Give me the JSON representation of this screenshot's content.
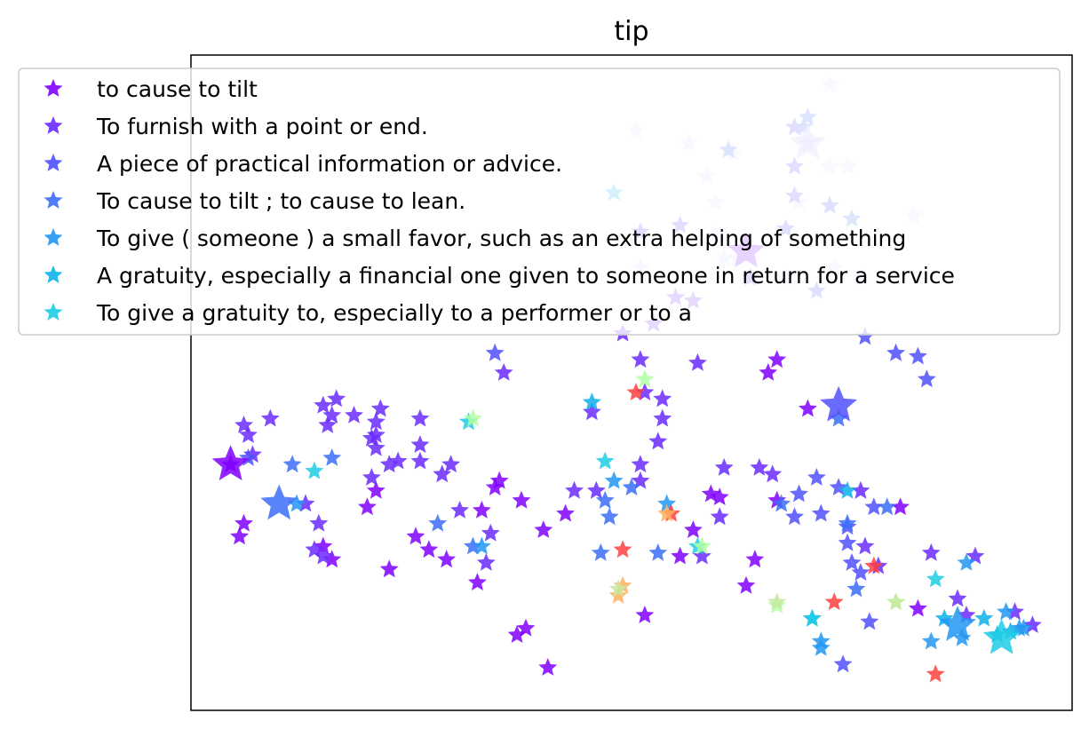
{
  "chart_data": {
    "type": "scatter",
    "title": "tip",
    "xlabel": "",
    "ylabel": "",
    "xlim": [
      0,
      100
    ],
    "ylim": [
      0,
      100
    ],
    "grid": false,
    "ticks": false,
    "legend": {
      "placement": "top-left",
      "entries": [
        {
          "label": "to cause to tilt",
          "color": "#8000ff"
        },
        {
          "label": "To furnish with a point or end.",
          "color": "#6a2afe"
        },
        {
          "label": "A piece of practical information or advice.",
          "color": "#5050fc"
        },
        {
          "label": "To cause to tilt ; to cause to lean.",
          "color": "#3c6ef8"
        },
        {
          "label": "To give ( someone ) a small favor, such as an extra helping of something",
          "color": "#2196f3"
        },
        {
          "label": "A gratuity, especially a financial one given to someone in return for a service",
          "color": "#0cb2eb"
        },
        {
          "label": "To give a gratuity to, especially to a performer or to a",
          "color": "#1ecde4"
        }
      ]
    },
    "series": [
      {
        "name": "to cause to tilt",
        "color": "#8000ff",
        "points": [
          [
            4.5,
            37.5
          ],
          [
            5.5,
            26.5
          ],
          [
            6.0,
            28.5
          ],
          [
            15.0,
            25.0
          ],
          [
            16.0,
            23.0
          ],
          [
            20.0,
            31.0
          ],
          [
            21.0,
            33.5
          ],
          [
            22.5,
            21.5
          ],
          [
            25.5,
            26.5
          ],
          [
            27.0,
            24.5
          ],
          [
            29.0,
            23.0
          ],
          [
            33.0,
            30.5
          ],
          [
            35.0,
            35.0
          ],
          [
            34.5,
            34.0
          ],
          [
            37.5,
            32.0
          ],
          [
            40.0,
            27.5
          ],
          [
            38.0,
            12.5
          ],
          [
            40.5,
            6.5
          ],
          [
            51.5,
            14.5
          ],
          [
            55.5,
            23.5
          ],
          [
            60.0,
            32.5
          ],
          [
            63.0,
            19.0
          ],
          [
            64.0,
            23.0
          ],
          [
            57.0,
            27.5
          ],
          [
            59.0,
            33.0
          ],
          [
            66.5,
            32.0
          ],
          [
            65.5,
            51.5
          ],
          [
            66.5,
            53.5
          ],
          [
            80.5,
            31.0
          ],
          [
            82.5,
            15.5
          ],
          [
            70.0,
            46.0
          ],
          [
            37.0,
            11.5
          ],
          [
            32.5,
            19.5
          ],
          [
            42.5,
            30.0
          ]
        ]
      },
      {
        "name": "To furnish with a point or end.",
        "color": "#6a2afe",
        "points": [
          [
            6.0,
            43.5
          ],
          [
            6.5,
            42.0
          ],
          [
            7.0,
            39.0
          ],
          [
            9.0,
            44.5
          ],
          [
            13.0,
            31.5
          ],
          [
            14.5,
            28.5
          ],
          [
            14.0,
            24.5
          ],
          [
            15.0,
            23.5
          ],
          [
            15.0,
            46.5
          ],
          [
            15.5,
            43.5
          ],
          [
            16.5,
            47.5
          ],
          [
            16.0,
            45.0
          ],
          [
            18.5,
            45.0
          ],
          [
            20.5,
            41.5
          ],
          [
            21.5,
            46.0
          ],
          [
            21.0,
            44.0
          ],
          [
            21.0,
            40.0
          ],
          [
            22.5,
            37.5
          ],
          [
            20.5,
            35.5
          ],
          [
            21.0,
            42.0
          ],
          [
            23.5,
            38.0
          ],
          [
            26.0,
            44.5
          ],
          [
            26.0,
            40.5
          ],
          [
            26.0,
            38.0
          ],
          [
            28.5,
            36.0
          ],
          [
            29.5,
            37.5
          ],
          [
            30.5,
            30.5
          ],
          [
            33.5,
            22.5
          ],
          [
            35.5,
            51.5
          ],
          [
            34.0,
            27.0
          ],
          [
            43.5,
            33.5
          ],
          [
            46.0,
            33.5
          ],
          [
            45.5,
            45.5
          ],
          [
            51.0,
            35.0
          ],
          [
            51.0,
            37.5
          ],
          [
            51.5,
            48.5
          ],
          [
            51.0,
            53.5
          ],
          [
            53.5,
            44.5
          ],
          [
            53.5,
            47.5
          ],
          [
            53.0,
            41.0
          ],
          [
            57.5,
            53.0
          ],
          [
            57.0,
            62.5
          ],
          [
            60.5,
            37.0
          ],
          [
            60.0,
            29.5
          ],
          [
            58.0,
            23.5
          ],
          [
            49.0,
            57.5
          ],
          [
            52.5,
            59.0
          ],
          [
            64.5,
            37.0
          ],
          [
            66.0,
            36.0
          ],
          [
            84.0,
            24.0
          ],
          [
            89.0,
            23.5
          ],
          [
            87.0,
            17.0
          ],
          [
            88.0,
            14.5
          ],
          [
            93.5,
            15.0
          ],
          [
            95.5,
            13.0
          ],
          [
            76.0,
            33.5
          ],
          [
            76.5,
            25.0
          ],
          [
            78.0,
            22.0
          ],
          [
            55.0,
            63.0
          ]
        ]
      },
      {
        "name": "A piece of practical information or advice.",
        "color": "#5050fc",
        "points": [
          [
            6.5,
            38.5
          ],
          [
            34.5,
            54.5
          ],
          [
            68.5,
            29.5
          ],
          [
            69.0,
            33.0
          ],
          [
            71.0,
            35.5
          ],
          [
            73.5,
            34.0
          ],
          [
            74.5,
            28.0
          ],
          [
            75.0,
            22.5
          ],
          [
            76.0,
            21.0
          ],
          [
            77.5,
            31.0
          ],
          [
            77.0,
            13.5
          ],
          [
            74.0,
            7.0
          ],
          [
            74.5,
            25.5
          ],
          [
            71.5,
            30.0
          ],
          [
            82.5,
            54.0
          ],
          [
            80.0,
            54.5
          ],
          [
            83.5,
            50.5
          ],
          [
            76.5,
            57.0
          ],
          [
            71.0,
            64.0
          ],
          [
            68.5,
            78.5
          ],
          [
            68.5,
            83.0
          ],
          [
            68.5,
            89.0
          ],
          [
            70.0,
            86.5
          ],
          [
            63.5,
            66.0
          ],
          [
            72.5,
            77.0
          ],
          [
            55.5,
            74.0
          ],
          [
            51.0,
            73.0
          ],
          [
            67.5,
            73.5
          ]
        ]
      },
      {
        "name": "To cause to tilt ; to cause to lean.",
        "color": "#3c6ef8",
        "points": [
          [
            11.5,
            37.5
          ],
          [
            16.0,
            38.5
          ],
          [
            28.0,
            28.5
          ],
          [
            32.0,
            25.0
          ],
          [
            47.0,
            32.0
          ],
          [
            50.0,
            34.0
          ],
          [
            47.5,
            29.5
          ],
          [
            53.0,
            24.0
          ],
          [
            46.5,
            24.0
          ],
          [
            67.0,
            31.5
          ],
          [
            73.5,
            44.5
          ],
          [
            75.5,
            18.5
          ],
          [
            74.5,
            28.5
          ],
          [
            79.0,
            31.0
          ],
          [
            61.0,
            85.5
          ],
          [
            75.0,
            75.0
          ],
          [
            69.5,
            89.0
          ],
          [
            70.0,
            90.5
          ]
        ]
      },
      {
        "name": "To give ( someone ) a small favor, such as an extra helping of something",
        "color": "#2196f3",
        "points": [
          [
            12.0,
            31.5
          ],
          [
            33.0,
            25.0
          ],
          [
            48.0,
            35.0
          ],
          [
            54.0,
            31.5
          ],
          [
            88.0,
            22.5
          ],
          [
            87.5,
            11.0
          ],
          [
            84.0,
            10.5
          ],
          [
            92.5,
            15.0
          ],
          [
            94.0,
            12.5
          ],
          [
            71.5,
            10.5
          ],
          [
            94.5,
            12.5
          ],
          [
            71.5,
            9.5
          ]
        ]
      },
      {
        "name": "A gratuity, especially a financial one given to someone in return for a service",
        "color": "#0cb2eb",
        "points": [
          [
            74.5,
            33.5
          ],
          [
            45.5,
            47.0
          ],
          [
            70.5,
            14.0
          ],
          [
            85.5,
            14.0
          ],
          [
            93.0,
            12.0
          ],
          [
            90.0,
            14.0
          ],
          [
            91.5,
            11.5
          ],
          [
            48.0,
            79.0
          ]
        ]
      },
      {
        "name": "To give a gratuity to, especially to a performer or to a",
        "color": "#1ecde4",
        "points": [
          [
            14.0,
            36.5
          ],
          [
            57.5,
            25.0
          ],
          [
            31.5,
            44.0
          ],
          [
            70.5,
            14.0
          ],
          [
            84.5,
            20.0
          ],
          [
            47.0,
            38.0
          ]
        ]
      },
      {
        "name": "",
        "color": "#b0ffa0",
        "points": [
          [
            51.5,
            50.5
          ],
          [
            80.0,
            16.5
          ],
          [
            66.5,
            16.0
          ],
          [
            32.0,
            44.5
          ],
          [
            58.0,
            25.0
          ]
        ]
      },
      {
        "name": "",
        "color": "#ff4040",
        "points": [
          [
            50.5,
            48.5
          ],
          [
            73.0,
            16.5
          ],
          [
            84.5,
            5.5
          ],
          [
            77.5,
            22.0
          ],
          [
            54.5,
            30.0
          ],
          [
            49.0,
            24.5
          ]
        ]
      },
      {
        "name": "",
        "color": "#ffb060",
        "points": [
          [
            49.0,
            19.0
          ],
          [
            48.5,
            17.5
          ],
          [
            54.0,
            30.0
          ]
        ]
      },
      {
        "name": "",
        "color": "#c8e8a0",
        "points": [
          [
            66.5,
            16.5
          ],
          [
            80.0,
            16.5
          ],
          [
            48.5,
            18.5
          ]
        ]
      }
    ],
    "highlighted": [
      {
        "x": 4.5,
        "y": 37.5,
        "color": "#8000ff"
      },
      {
        "x": 10.0,
        "y": 31.5,
        "color": "#3c6ef8"
      },
      {
        "x": 73.5,
        "y": 46.5,
        "color": "#5050fc"
      },
      {
        "x": 87.0,
        "y": 13.0,
        "color": "#2196f3"
      },
      {
        "x": 92.0,
        "y": 11.0,
        "color": "#1ecde4"
      },
      {
        "x": 70.0,
        "y": 86.5,
        "color": "#c8b8ff"
      },
      {
        "x": 63.0,
        "y": 70.0,
        "color": "#8000ff"
      }
    ],
    "background_points": {
      "color": "#c8b8ff",
      "points": [
        [
          72.5,
          95.5
        ],
        [
          50.5,
          88.5
        ],
        [
          56.5,
          86.5
        ],
        [
          61.5,
          85.0
        ],
        [
          70.0,
          87.5
        ],
        [
          72.5,
          83.0
        ],
        [
          74.5,
          83.0
        ],
        [
          58.5,
          81.5
        ],
        [
          59.5,
          77.5
        ],
        [
          69.0,
          77.5
        ],
        [
          82.0,
          75.5
        ],
        [
          59.5,
          72.5
        ],
        [
          63.0,
          70.0
        ],
        [
          62.0,
          69.0
        ],
        [
          76.0,
          66.0
        ],
        [
          67.5,
          66.0
        ],
        [
          73.0,
          67.5
        ],
        [
          60.5,
          69.0
        ],
        [
          51.0,
          67.5
        ]
      ]
    }
  }
}
